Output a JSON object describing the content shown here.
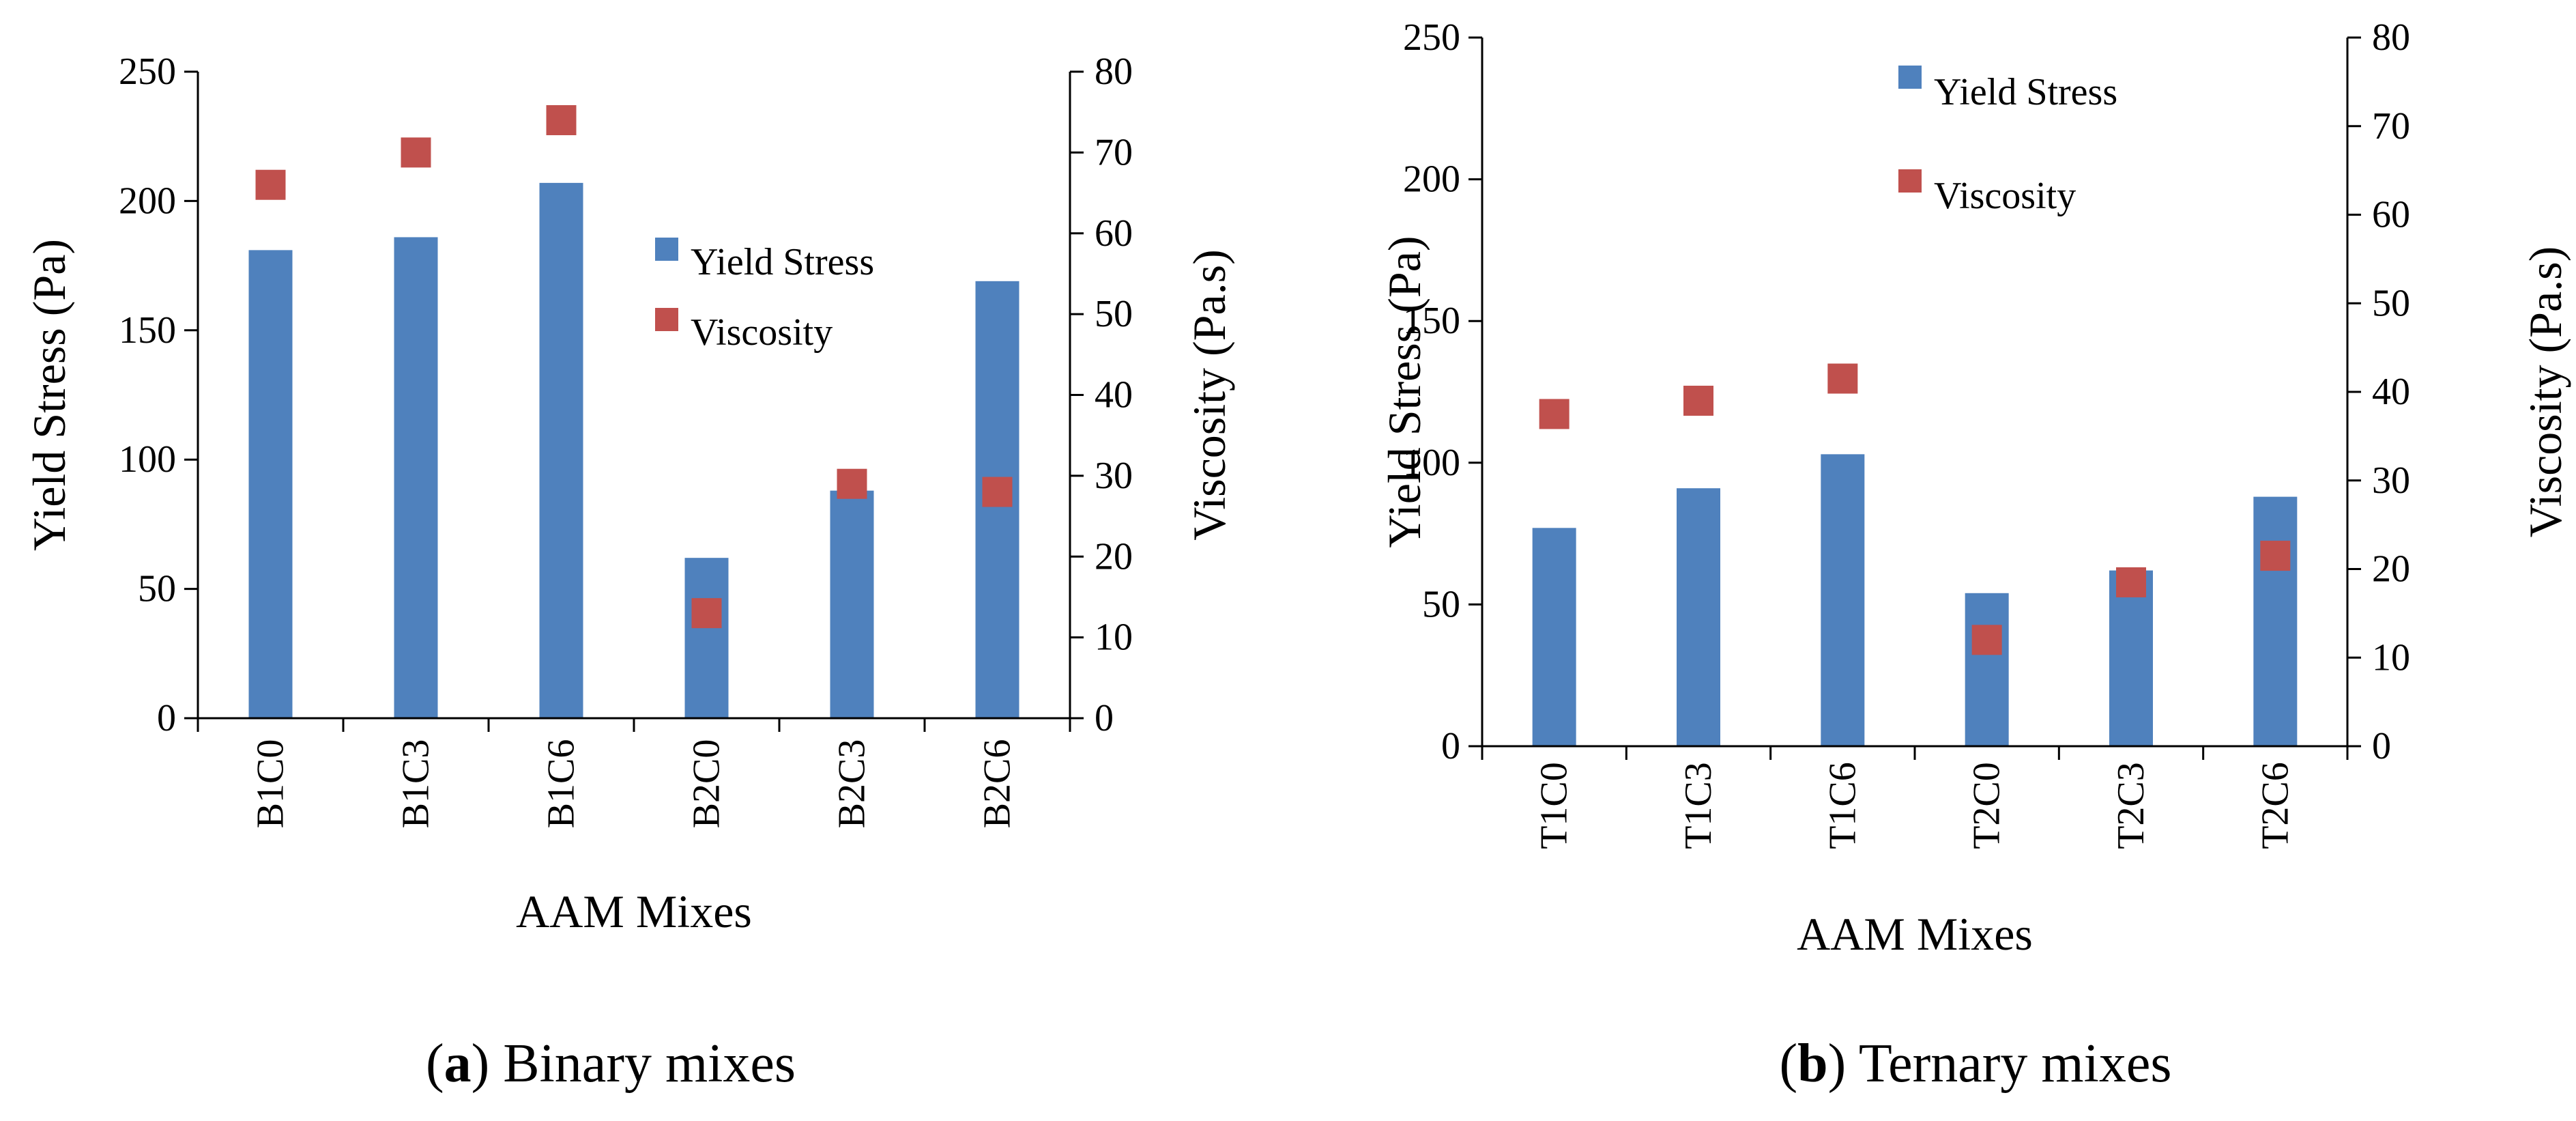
{
  "chart_data": [
    {
      "type": "bar",
      "panel": "a",
      "categories": [
        "B1C0",
        "B1C3",
        "B1C6",
        "B2C0",
        "B2C3",
        "B2C6"
      ],
      "series": [
        {
          "name": "Yield Stress",
          "kind": "bar",
          "axis": "left",
          "color": "#4F81BD",
          "values": [
            181,
            186,
            207,
            62,
            88,
            169
          ]
        },
        {
          "name": "Viscosity",
          "kind": "marker",
          "axis": "right",
          "color": "#C0504D",
          "values": [
            66,
            70,
            74,
            13,
            29,
            28
          ]
        }
      ],
      "xlabel": "AAM Mixes",
      "ylabel": "Yield Stress (Pa)",
      "y2label": "Viscosity (Pa.s)",
      "ylim": [
        0,
        250
      ],
      "yticks": [
        0,
        50,
        100,
        150,
        200,
        250
      ],
      "y2lim": [
        0,
        80
      ],
      "y2ticks": [
        0,
        10,
        20,
        30,
        40,
        50,
        60,
        70,
        80
      ],
      "legend_position": "right-middle",
      "grid": false,
      "caption_letter": "a",
      "caption_text": "Binary mixes"
    },
    {
      "type": "bar",
      "panel": "b",
      "categories": [
        "T1C0",
        "T1C3",
        "T1C6",
        "T2C0",
        "T2C3",
        "T2C6"
      ],
      "series": [
        {
          "name": "Yield Stress",
          "kind": "bar",
          "axis": "left",
          "color": "#4F81BD",
          "values": [
            77,
            91,
            103,
            54,
            62,
            88
          ]
        },
        {
          "name": "Viscosity",
          "kind": "marker",
          "axis": "right",
          "color": "#C0504D",
          "values": [
            37.5,
            39,
            41.5,
            12,
            18.5,
            21.5
          ]
        }
      ],
      "xlabel": "AAM Mixes",
      "ylabel": "Yield Stress (Pa)",
      "y2label": "Viscosity (Pa.s)",
      "ylim": [
        0,
        250
      ],
      "yticks": [
        0,
        50,
        100,
        150,
        200,
        250
      ],
      "y2lim": [
        0,
        80
      ],
      "y2ticks": [
        0,
        10,
        20,
        30,
        40,
        50,
        60,
        70,
        80
      ],
      "legend_position": "top-middle",
      "grid": false,
      "caption_letter": "b",
      "caption_text": "Ternary mixes"
    }
  ]
}
